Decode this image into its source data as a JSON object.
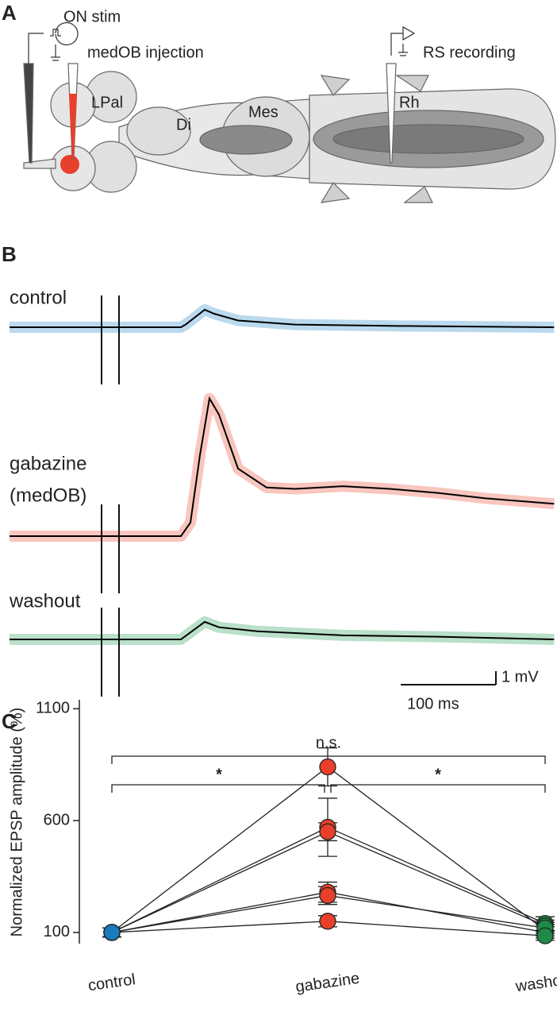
{
  "panel_a": {
    "label": "A",
    "labels": [
      "ON stim",
      "medOB injection",
      "RS recording",
      "LPal",
      "Di",
      "Mes",
      "Rh"
    ]
  },
  "panel_b": {
    "label": "B",
    "scale_bar": {
      "voltage": "1 mV",
      "time": "100 ms"
    },
    "traces": [
      {
        "name_lines": [
          "control"
        ],
        "color": "#1a7bbf",
        "band_color": "#a9d0ea",
        "t": [
          0,
          180,
          185,
          205,
          215,
          240,
          300,
          400,
          572
        ],
        "mv": [
          0,
          0,
          0.2,
          1.3,
          1.0,
          0.5,
          0.2,
          0.1,
          0
        ]
      },
      {
        "name_lines": [
          "gabazine",
          "(medOB)"
        ],
        "color": "#e8402a",
        "band_color": "#f6b8ae",
        "t": [
          0,
          180,
          190,
          200,
          210,
          220,
          240,
          270,
          300,
          350,
          400,
          450,
          500,
          572
        ],
        "mv": [
          0,
          0,
          1,
          6,
          10.2,
          9,
          5,
          3.6,
          3.5,
          3.7,
          3.5,
          3.2,
          2.8,
          2.4
        ]
      },
      {
        "name_lines": [
          "washout"
        ],
        "color": "#1e8a48",
        "band_color": "#a8d8bb",
        "t": [
          0,
          180,
          205,
          220,
          260,
          350,
          450,
          572
        ],
        "mv": [
          0,
          0,
          1.3,
          0.9,
          0.6,
          0.3,
          0.2,
          0
        ]
      }
    ]
  },
  "chart_data": {
    "type": "line",
    "panel_label": "C",
    "y_label": "Normalized EPSP amplitude (%)",
    "categories": [
      "control",
      "gabazine",
      "washout"
    ],
    "category_colors": [
      "#1a7bbf",
      "#e8402a",
      "#1e8a48"
    ],
    "ylim": [
      50,
      1140
    ],
    "yticks": [
      100,
      600,
      1100
    ],
    "series": [
      {
        "values": [
          100,
          840,
          110
        ],
        "errors": [
          20,
          85,
          25
        ]
      },
      {
        "values": [
          100,
          570,
          140
        ],
        "errors": [
          20,
          130,
          30
        ]
      },
      {
        "values": [
          100,
          550,
          130
        ],
        "errors": [
          20,
          40,
          25
        ]
      },
      {
        "values": [
          100,
          280,
          100
        ],
        "errors": [
          20,
          45,
          25
        ]
      },
      {
        "values": [
          100,
          265,
          120
        ],
        "errors": [
          20,
          40,
          25
        ]
      },
      {
        "values": [
          100,
          150,
          85
        ],
        "errors": [
          20,
          25,
          20
        ]
      }
    ],
    "annotations": [
      "n.s.",
      "*",
      "*"
    ]
  }
}
